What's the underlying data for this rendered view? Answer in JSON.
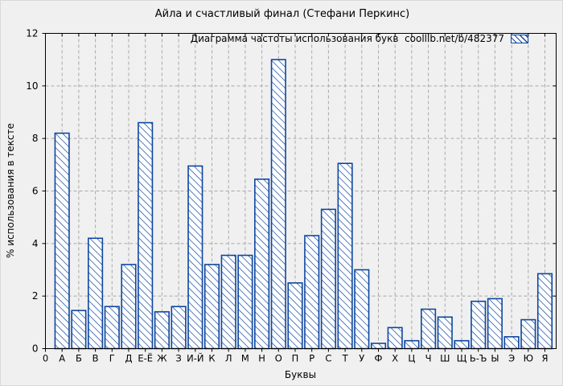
{
  "colors": {
    "bar_blue": "#0e46a0",
    "bar_fill": "#ffffff",
    "grid_gray": "#a8a8a8",
    "axis_black": "#000000",
    "background": "#f0f0f0"
  },
  "chart_data": {
    "type": "bar",
    "title": "Айла и счастливый финал (Стефани Перкинс)",
    "legend_label": "Диаграмма частоты использования букв  coollib.net/b/482377",
    "legend_position": "top-right-inside",
    "xlabel": "Буквы",
    "ylabel": "% использования в тексте",
    "ylim": [
      0,
      12
    ],
    "yticks": [
      0,
      2,
      4,
      6,
      8,
      10,
      12
    ],
    "x_origin_tick_label": "0",
    "grid": true,
    "bar_style": "white fill, blue backslash hatch, blue edge",
    "categories": [
      "А",
      "Б",
      "В",
      "Г",
      "Д",
      "Е-Ё",
      "Ж",
      "З",
      "И-Й",
      "К",
      "Л",
      "М",
      "Н",
      "О",
      "П",
      "Р",
      "С",
      "Т",
      "У",
      "Ф",
      "Х",
      "Ц",
      "Ч",
      "Ш",
      "Щ",
      "Ь-Ъ",
      "Ы",
      "Э",
      "Ю",
      "Я"
    ],
    "values": [
      8.2,
      1.45,
      4.2,
      1.6,
      3.2,
      8.6,
      1.4,
      1.6,
      6.95,
      3.2,
      3.55,
      3.55,
      6.45,
      11.0,
      2.5,
      4.3,
      5.3,
      7.05,
      3.0,
      0.2,
      0.8,
      0.3,
      1.5,
      1.2,
      0.3,
      1.8,
      1.9,
      0.45,
      1.1,
      2.85
    ]
  }
}
